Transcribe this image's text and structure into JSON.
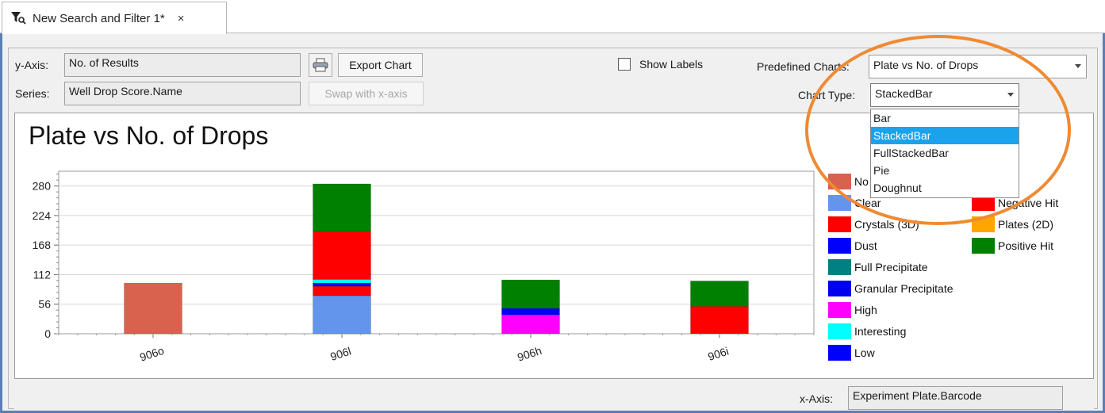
{
  "tab": {
    "title": "New Search and Filter 1*",
    "close": "×",
    "icon": "filter-search-icon"
  },
  "controls": {
    "y_axis_label": "y-Axis:",
    "y_axis_value": "No. of Results",
    "series_label": "Series:",
    "series_value": "Well Drop Score.Name",
    "export_label": "Export Chart",
    "swap_label": "Swap with x-axis",
    "show_labels": "Show Labels",
    "predefined_label": "Predefined Charts:",
    "predefined_value": "Plate vs No. of Drops",
    "chart_type_label": "Chart Type:",
    "chart_type_value": "StackedBar",
    "chart_type_options": [
      "Bar",
      "StackedBar",
      "FullStackedBar",
      "Pie",
      "Doughnut"
    ],
    "x_axis_label": "x-Axis:",
    "x_axis_value": "Experiment Plate.Barcode"
  },
  "legend": {
    "left": [
      {
        "name": "No",
        "color": "#d9624e"
      },
      {
        "name": "Clear",
        "color": "#6495ed"
      },
      {
        "name": "Crystals (3D)",
        "color": "#ff0000"
      },
      {
        "name": "Dust",
        "color": "#0000ff"
      },
      {
        "name": "Full Precipitate",
        "color": "#008080"
      },
      {
        "name": "Granular Precipitate",
        "color": "#0000ee"
      },
      {
        "name": "High",
        "color": "#ff00ff"
      },
      {
        "name": "Interesting",
        "color": "#00ffff"
      },
      {
        "name": "Low",
        "color": "#0000ff"
      }
    ],
    "right": [
      {
        "name": "Negative Hit",
        "color": "#ff0000"
      },
      {
        "name": "Plates (2D)",
        "color": "#ffa500"
      },
      {
        "name": "Positive Hit",
        "color": "#008000"
      }
    ]
  },
  "chart_data": {
    "type": "bar",
    "stacked": true,
    "title": "Plate vs No. of Drops",
    "categories": [
      "906o",
      "906l",
      "906h",
      "906i"
    ],
    "ylim": [
      0,
      308
    ],
    "yticks": [
      0,
      56,
      112,
      168,
      224,
      280
    ],
    "series": [
      {
        "name": "No",
        "color": "#d9624e",
        "values": [
          96,
          0,
          0,
          0
        ]
      },
      {
        "name": "Clear",
        "color": "#6495ed",
        "values": [
          0,
          72,
          0,
          0
        ]
      },
      {
        "name": "Crystals (3D)",
        "color": "#ff0000",
        "values": [
          0,
          18,
          0,
          0
        ]
      },
      {
        "name": "High",
        "color": "#ff00ff",
        "values": [
          0,
          0,
          36,
          0
        ]
      },
      {
        "name": "Low",
        "color": "#0000ff",
        "values": [
          0,
          6,
          12,
          0
        ]
      },
      {
        "name": "Interesting",
        "color": "#00ffff",
        "values": [
          0,
          7,
          0,
          0
        ]
      },
      {
        "name": "Negative Hit",
        "color": "#ff0000",
        "values": [
          0,
          91,
          0,
          52
        ]
      },
      {
        "name": "Positive Hit",
        "color": "#008000",
        "values": [
          0,
          90,
          54,
          48
        ]
      }
    ]
  }
}
